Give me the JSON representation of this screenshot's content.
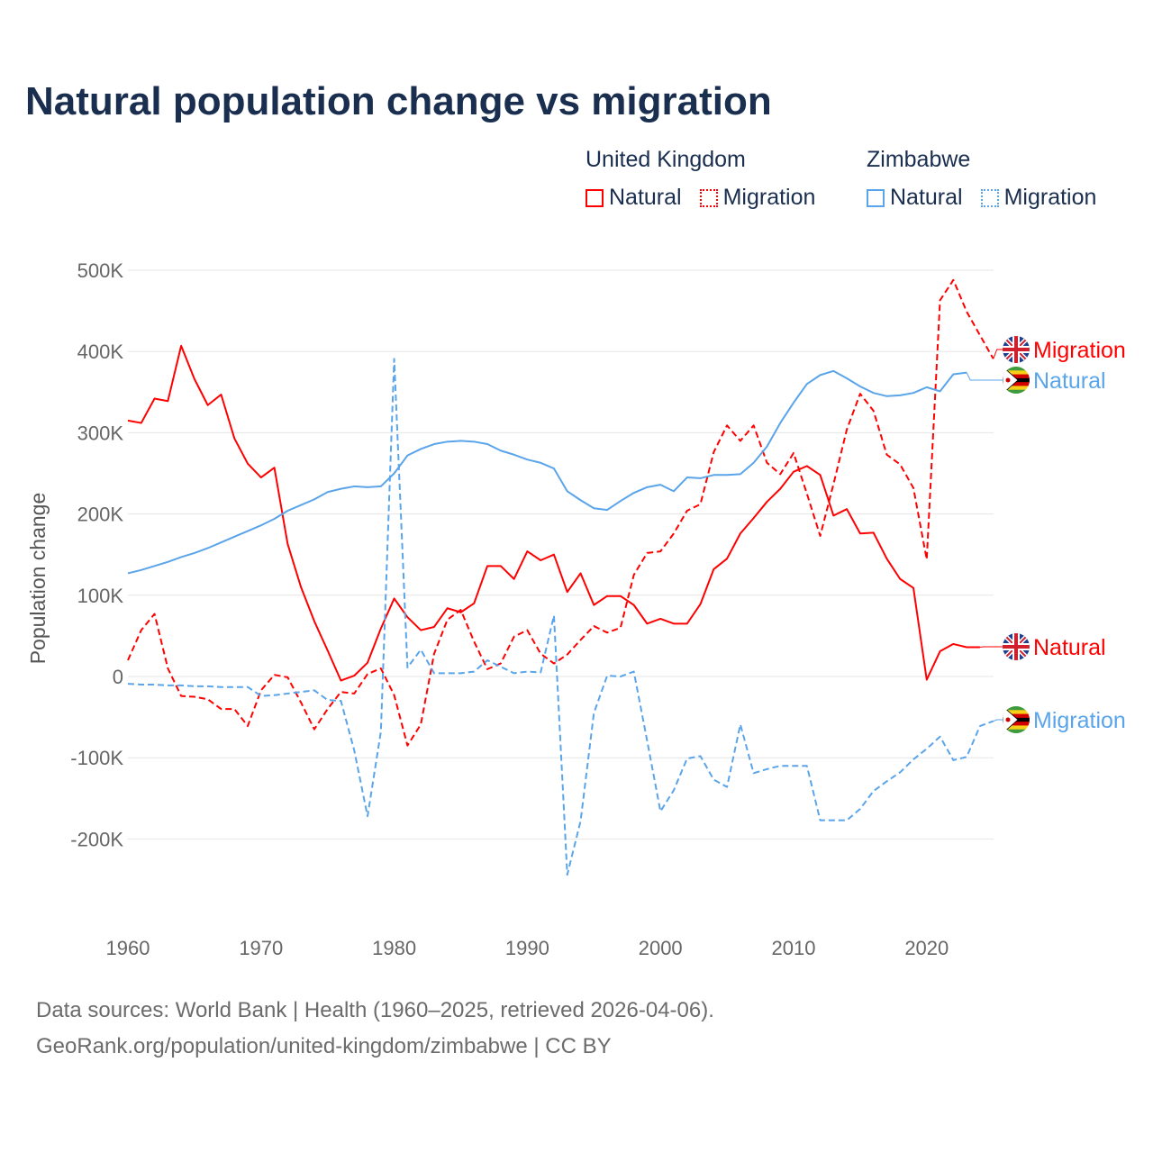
{
  "title": "Natural population change vs migration",
  "legend": {
    "groups": [
      {
        "name": "United Kingdom",
        "items": [
          "Natural",
          "Migration"
        ],
        "color": "#ff0000"
      },
      {
        "name": "Zimbabwe",
        "items": [
          "Natural",
          "Migration"
        ],
        "color": "#5aa4ea"
      }
    ]
  },
  "footer": {
    "line1": "Data sources: World Bank | Health (1960–2025, retrieved 2026-04-06).",
    "line2": "GeoRank.org/population/united-kingdom/zimbabwe | CC BY"
  },
  "chart_data": {
    "type": "line",
    "title": "Natural population change vs migration",
    "ylabel": "Population change",
    "xlabel": "",
    "xlim": [
      1960,
      2025
    ],
    "ylim": [
      -250000,
      500000
    ],
    "xticks": [
      1960,
      1970,
      1980,
      1990,
      2000,
      2010,
      2020
    ],
    "xtick_labels": [
      "1960",
      "1970",
      "1980",
      "1990",
      "2000",
      "2010",
      "2020"
    ],
    "yticks": [
      500000,
      400000,
      300000,
      200000,
      100000,
      0,
      -100000,
      -200000
    ],
    "ytick_labels": [
      "500K",
      "400K",
      "300K",
      "200K",
      "100K",
      "0",
      "-100K",
      "-200K"
    ],
    "grid": true,
    "x_start": 1960,
    "series": [
      {
        "name": "United Kingdom Natural",
        "end_label": "Natural",
        "country": "uk",
        "color": "#ff0000",
        "dash": false,
        "values": [
          315,
          312,
          342,
          339,
          407,
          366,
          334,
          347,
          293,
          262,
          245,
          257,
          163,
          110,
          68,
          32,
          -5,
          1,
          17,
          59,
          96,
          73,
          57,
          61,
          84,
          79,
          90,
          136,
          136,
          120,
          154,
          143,
          150,
          104,
          127,
          88,
          99,
          99,
          88,
          65,
          71,
          65,
          65,
          89,
          132,
          145,
          176,
          195,
          215,
          231,
          252,
          259,
          248,
          198,
          206,
          176,
          177,
          145,
          120,
          109,
          -4,
          31,
          40,
          36,
          36,
          null
        ]
      },
      {
        "name": "United Kingdom Migration",
        "end_label": "Migration",
        "country": "uk",
        "color": "#ff0000",
        "dash": true,
        "values": [
          20,
          57,
          77,
          10,
          -24,
          -25,
          -28,
          -40,
          -40,
          -61,
          -17,
          2,
          -1,
          -32,
          -65,
          -40,
          -19,
          -21,
          3,
          10,
          -23,
          -85,
          -59,
          28,
          70,
          82,
          43,
          9,
          16,
          49,
          57,
          28,
          16,
          27,
          45,
          62,
          54,
          60,
          125,
          152,
          154,
          176,
          204,
          212,
          276,
          309,
          290,
          309,
          263,
          249,
          275,
          225,
          173,
          237,
          304,
          348,
          327,
          273,
          261,
          232,
          144,
          463,
          488,
          449,
          420,
          391
        ]
      },
      {
        "name": "Zimbabwe Natural",
        "end_label": "Natural",
        "country": "zw",
        "color": "#5aa4ea",
        "dash": false,
        "values": [
          127,
          131,
          136,
          141,
          147,
          152,
          158,
          165,
          172,
          179,
          186,
          194,
          204,
          211,
          218,
          227,
          231,
          234,
          233,
          234,
          250,
          272,
          280,
          286,
          289,
          290,
          289,
          286,
          278,
          273,
          267,
          263,
          256,
          228,
          217,
          207,
          205,
          216,
          226,
          233,
          236,
          228,
          245,
          244,
          248,
          248,
          249,
          263,
          283,
          312,
          337,
          360,
          371,
          376,
          367,
          357,
          349,
          345,
          346,
          349,
          356,
          351,
          372,
          374,
          null,
          null
        ]
      },
      {
        "name": "Zimbabwe Migration",
        "end_label": "Migration",
        "country": "zw",
        "color": "#5aa4ea",
        "dash": true,
        "values": [
          -9,
          -10,
          -10,
          -11,
          -11,
          -12,
          -12,
          -13,
          -13,
          -13,
          -24,
          -23,
          -21,
          -19,
          -17,
          -29,
          -30,
          -91,
          -172,
          -68,
          391,
          11,
          33,
          4,
          4,
          4,
          6,
          20,
          12,
          4,
          6,
          5,
          75,
          -244,
          -178,
          -45,
          1,
          0,
          6,
          -79,
          -166,
          -140,
          -101,
          -98,
          -127,
          -136,
          -59,
          -119,
          -114,
          -110,
          -110,
          -110,
          -177,
          -177,
          -177,
          -163,
          -141,
          -129,
          -118,
          -102,
          -89,
          -74,
          -103,
          -99,
          -61,
          -55
        ]
      }
    ],
    "value_unit": "thousands"
  }
}
